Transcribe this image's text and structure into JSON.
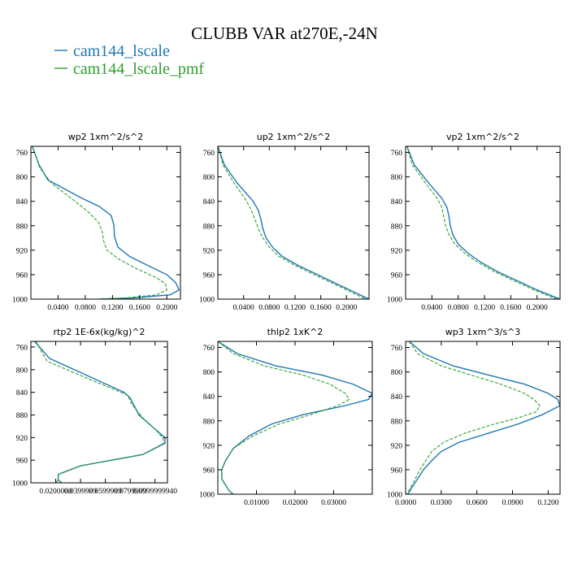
{
  "figure_title": "CLUBB VAR at270E,-24N",
  "colors": {
    "blue": "#1f77b4",
    "green": "#2ca02c"
  },
  "legend": [
    {
      "label": "cam144_lscale",
      "color": "#1f77b4"
    },
    {
      "label": "cam144_lscale_pmf",
      "color": "#2ca02c"
    }
  ],
  "chart_data": [
    {
      "type": "line",
      "title": "wp2   1xm^2/s^2",
      "xlim": [
        0,
        0.22
      ],
      "ylim": [
        1000,
        750
      ],
      "xticks": [
        0.04,
        0.08,
        0.12,
        0.16,
        0.2
      ],
      "xtick_labels": [
        "0.0400",
        "0.0800",
        "0.1200",
        "0.1600",
        "0.2000"
      ],
      "yticks": [
        760,
        800,
        840,
        880,
        920,
        960,
        1000
      ],
      "ytick_labels": [
        "760",
        "800",
        "840",
        "880",
        "920",
        "960",
        "1000"
      ],
      "series": [
        {
          "name": "cam144_lscale",
          "color": "#1f77b4",
          "dashed": false,
          "y": [
            750,
            780,
            805,
            835,
            848,
            863,
            878,
            898,
            915,
            930,
            945,
            960,
            973,
            985,
            993,
            998,
            1000
          ],
          "x": [
            0.002,
            0.012,
            0.025,
            0.075,
            0.1,
            0.118,
            0.122,
            0.123,
            0.128,
            0.145,
            0.172,
            0.2,
            0.213,
            0.218,
            0.205,
            0.15,
            0.1
          ]
        },
        {
          "name": "cam144_lscale_pmf",
          "color": "#2ca02c",
          "dashed": true,
          "y": [
            750,
            785,
            810,
            840,
            858,
            875,
            890,
            905,
            920,
            935,
            950,
            965,
            975,
            985,
            993,
            998,
            1000
          ],
          "x": [
            0.002,
            0.013,
            0.03,
            0.065,
            0.085,
            0.1,
            0.105,
            0.107,
            0.112,
            0.13,
            0.155,
            0.185,
            0.198,
            0.2,
            0.185,
            0.14,
            0.1
          ]
        }
      ]
    },
    {
      "type": "line",
      "title": "up2   1xm^2/s^2",
      "xlim": [
        0,
        0.235
      ],
      "ylim": [
        1000,
        750
      ],
      "xticks": [
        0.04,
        0.08,
        0.12,
        0.16,
        0.2
      ],
      "xtick_labels": [
        "0.0400",
        "0.0800",
        "0.1200",
        "0.1600",
        "0.2000"
      ],
      "yticks": [
        760,
        800,
        840,
        880,
        920,
        960,
        1000
      ],
      "ytick_labels": [
        "760",
        "800",
        "840",
        "880",
        "920",
        "960",
        "1000"
      ],
      "series": [
        {
          "name": "cam144_lscale",
          "color": "#1f77b4",
          "dashed": false,
          "y": [
            750,
            780,
            810,
            840,
            855,
            870,
            885,
            900,
            915,
            930,
            945,
            960,
            975,
            990,
            1000
          ],
          "x": [
            0.0,
            0.01,
            0.03,
            0.055,
            0.063,
            0.067,
            0.07,
            0.075,
            0.085,
            0.1,
            0.125,
            0.155,
            0.185,
            0.215,
            0.235
          ]
        },
        {
          "name": "cam144_lscale_pmf",
          "color": "#2ca02c",
          "dashed": true,
          "y": [
            750,
            780,
            810,
            840,
            855,
            870,
            885,
            900,
            915,
            930,
            945,
            960,
            975,
            990,
            1000
          ],
          "x": [
            0.0,
            0.008,
            0.025,
            0.045,
            0.052,
            0.058,
            0.063,
            0.07,
            0.08,
            0.095,
            0.12,
            0.15,
            0.18,
            0.21,
            0.23
          ]
        }
      ]
    },
    {
      "type": "line",
      "title": "vp2   1xm^2/s^2",
      "xlim": [
        0,
        0.235
      ],
      "ylim": [
        1000,
        750
      ],
      "xticks": [
        0.04,
        0.08,
        0.12,
        0.16,
        0.2
      ],
      "xtick_labels": [
        "0.0400",
        "0.0800",
        "0.1200",
        "0.1600",
        "0.2000"
      ],
      "yticks": [
        760,
        800,
        840,
        880,
        920,
        960,
        1000
      ],
      "ytick_labels": [
        "760",
        "800",
        "840",
        "880",
        "920",
        "960",
        "1000"
      ],
      "series": [
        {
          "name": "cam144_lscale",
          "color": "#1f77b4",
          "dashed": false,
          "y": [
            750,
            780,
            810,
            835,
            850,
            865,
            880,
            895,
            910,
            925,
            940,
            955,
            970,
            985,
            1000
          ],
          "x": [
            0.002,
            0.013,
            0.035,
            0.055,
            0.063,
            0.066,
            0.068,
            0.072,
            0.08,
            0.095,
            0.115,
            0.14,
            0.17,
            0.2,
            0.235
          ]
        },
        {
          "name": "cam144_lscale_pmf",
          "color": "#2ca02c",
          "dashed": true,
          "y": [
            750,
            780,
            810,
            835,
            850,
            865,
            880,
            895,
            910,
            925,
            940,
            955,
            970,
            985,
            1000
          ],
          "x": [
            0.002,
            0.01,
            0.03,
            0.048,
            0.055,
            0.058,
            0.061,
            0.066,
            0.075,
            0.09,
            0.11,
            0.135,
            0.165,
            0.195,
            0.23
          ]
        }
      ]
    },
    {
      "type": "line",
      "title": "rtp2   1E-6x(kg/kg)^2",
      "xlim": [
        0,
        0.11
      ],
      "ylim": [
        1000,
        750
      ],
      "xticks": [
        0.02,
        0.04,
        0.06,
        0.08,
        0.1
      ],
      "xtick_labels": [
        "0.0200000",
        "0.0399999",
        "0.0599999",
        "0.0799999",
        "0.0999999940"
      ],
      "yticks": [
        760,
        800,
        840,
        880,
        920,
        960,
        1000
      ],
      "ytick_labels": [
        "760",
        "800",
        "840",
        "880",
        "920",
        "960",
        "1000"
      ],
      "series": [
        {
          "name": "cam144_lscale",
          "color": "#1f77b4",
          "dashed": false,
          "y": [
            750,
            780,
            810,
            840,
            850,
            880,
            905,
            920,
            930,
            950,
            970,
            985,
            995,
            1000
          ],
          "x": [
            0.003,
            0.015,
            0.045,
            0.075,
            0.08,
            0.087,
            0.1,
            0.108,
            0.108,
            0.09,
            0.04,
            0.022,
            0.022,
            0.025
          ]
        },
        {
          "name": "cam144_lscale_pmf",
          "color": "#2ca02c",
          "dashed": true,
          "y": [
            750,
            785,
            815,
            845,
            860,
            885,
            905,
            920,
            930,
            950,
            970,
            985,
            995,
            1000
          ],
          "x": [
            0.004,
            0.013,
            0.045,
            0.078,
            0.081,
            0.09,
            0.1,
            0.106,
            0.107,
            0.09,
            0.04,
            0.022,
            0.022,
            0.02
          ]
        }
      ]
    },
    {
      "type": "line",
      "title": "thlp2   1xK^2",
      "xlim": [
        0,
        0.04
      ],
      "ylim": [
        1000,
        750
      ],
      "xticks": [
        0.01,
        0.02,
        0.03
      ],
      "xtick_labels": [
        "0.01000",
        "0.02000",
        "0.03000"
      ],
      "yticks": [
        760,
        800,
        840,
        880,
        920,
        960,
        1000
      ],
      "ytick_labels": [
        "760",
        "800",
        "840",
        "880",
        "920",
        "960",
        "1000"
      ],
      "series": [
        {
          "name": "cam144_lscale",
          "color": "#1f77b4",
          "dashed": false,
          "y": [
            750,
            770,
            790,
            805,
            820,
            835,
            845,
            855,
            870,
            885,
            905,
            925,
            945,
            960,
            975,
            985,
            995,
            1000
          ],
          "x": [
            0.0,
            0.005,
            0.015,
            0.027,
            0.035,
            0.04,
            0.039,
            0.033,
            0.022,
            0.014,
            0.008,
            0.004,
            0.002,
            0.001,
            0.001,
            0.002,
            0.003,
            0.004
          ]
        },
        {
          "name": "cam144_lscale_pmf",
          "color": "#2ca02c",
          "dashed": true,
          "y": [
            750,
            770,
            790,
            805,
            820,
            835,
            845,
            855,
            870,
            885,
            905,
            925,
            945,
            960,
            975,
            985,
            995,
            1000
          ],
          "x": [
            0.0,
            0.004,
            0.012,
            0.022,
            0.029,
            0.033,
            0.034,
            0.031,
            0.024,
            0.016,
            0.009,
            0.004,
            0.002,
            0.001,
            0.001,
            0.002,
            0.003,
            0.004
          ]
        }
      ]
    },
    {
      "type": "line",
      "title": "wp3   1xm^3/s^3",
      "xlim": [
        0,
        0.13
      ],
      "ylim": [
        1000,
        750
      ],
      "xticks": [
        0.0,
        0.03,
        0.06,
        0.09,
        0.12
      ],
      "xtick_labels": [
        "0.0000",
        "0.0300",
        "0.0600",
        "0.0900",
        "0.1200"
      ],
      "yticks": [
        760,
        800,
        840,
        880,
        920,
        960,
        1000
      ],
      "ytick_labels": [
        "760",
        "800",
        "840",
        "880",
        "920",
        "960",
        "1000"
      ],
      "series": [
        {
          "name": "cam144_lscale",
          "color": "#1f77b4",
          "dashed": false,
          "y": [
            750,
            770,
            790,
            805,
            820,
            835,
            845,
            855,
            870,
            885,
            900,
            915,
            930,
            945,
            960,
            975,
            990,
            1000
          ],
          "x": [
            0.003,
            0.015,
            0.04,
            0.07,
            0.1,
            0.12,
            0.128,
            0.13,
            0.115,
            0.095,
            0.07,
            0.045,
            0.03,
            0.022,
            0.015,
            0.01,
            0.005,
            0.002
          ]
        },
        {
          "name": "cam144_lscale_pmf",
          "color": "#2ca02c",
          "dashed": true,
          "y": [
            750,
            770,
            790,
            805,
            820,
            835,
            845,
            855,
            865,
            875,
            885,
            900,
            915,
            930,
            945,
            960,
            975,
            990,
            1000
          ],
          "x": [
            0.003,
            0.01,
            0.03,
            0.055,
            0.08,
            0.1,
            0.108,
            0.113,
            0.11,
            0.095,
            0.075,
            0.05,
            0.032,
            0.022,
            0.017,
            0.012,
            0.008,
            0.004,
            0.001
          ]
        }
      ]
    }
  ]
}
